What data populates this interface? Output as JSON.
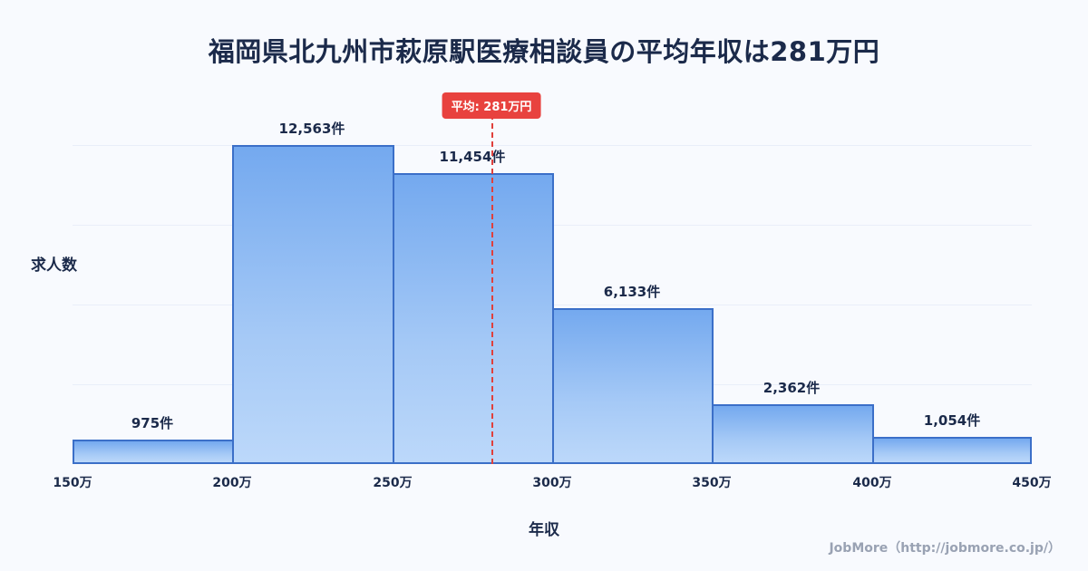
{
  "title": "福岡県北九州市萩原駅医療相談員の平均年収は281万円",
  "chart_data": {
    "type": "bar",
    "subtype": "histogram",
    "title": "福岡県北九州市萩原駅医療相談員の平均年収は281万円",
    "xlabel": "年収",
    "ylabel": "求人数",
    "bin_edges": [
      150,
      200,
      250,
      300,
      350,
      400,
      450
    ],
    "bin_edge_labels": [
      "150万",
      "200万",
      "250万",
      "300万",
      "350万",
      "400万",
      "450万"
    ],
    "values": [
      975,
      12563,
      11454,
      6133,
      2362,
      1054
    ],
    "value_labels": [
      "975件",
      "12,563件",
      "11,454件",
      "6,133件",
      "2,362件",
      "1,054件"
    ],
    "xlim": [
      150,
      450
    ],
    "ylim": [
      0,
      12563
    ],
    "grid": "faint-horizontal",
    "legend": "none",
    "average_marker": {
      "value": 281,
      "label": "平均: 281万円",
      "style": "red-dashed-vertical-line"
    }
  },
  "colors": {
    "background": "#f8fafe",
    "title_text": "#1b2a4a",
    "bar_border": "#3b6fc8",
    "bar_gradient_top": "#74a9ef",
    "bar_gradient_bottom": "#bcd8fa",
    "average_line": "#e0403c",
    "average_badge_bg": "#e8423e",
    "average_badge_text": "#ffffff",
    "footer_text": "#99a2b3"
  },
  "footer": {
    "credit": "JobMore（http://jobmore.co.jp/）"
  }
}
